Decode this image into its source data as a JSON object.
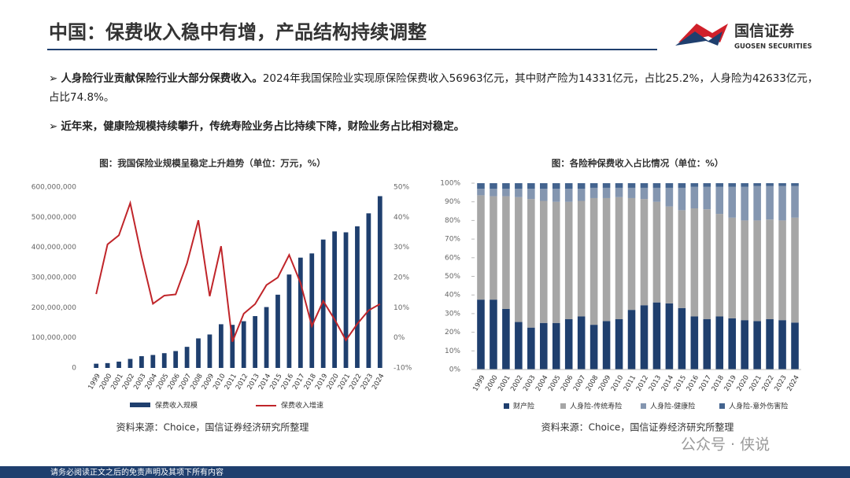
{
  "header": {
    "title": "中国：保费收入稳中有增，产品结构持续调整",
    "logo_name": "国信证券",
    "logo_sub": "GUOSEN SECURITIES"
  },
  "bullets": [
    {
      "lead": "人身险行业贡献保险行业大部分保费收入。",
      "text": "2024年我国保险业实现原保险保费收入56963亿元，其中财产险为14331亿元，占比25.2%，人身险为42633亿元，占比74.8%。"
    },
    {
      "lead": "近年来，健康险规模持续攀升，传统寿险业务占比持续下降，财险业务占比相对稳定。"
    }
  ],
  "footer": "请务必阅读正文之后的免责声明及其项下所有内容",
  "watermark": "公众号 · 侠说",
  "chart_data": [
    {
      "type": "bar_line",
      "title": "图：我国保险业规模呈稳定上升趋势（单位：万元，%）",
      "source": "资料来源：Choice，国信证券经济研究所整理",
      "categories": [
        "1999",
        "2000",
        "2001",
        "2002",
        "2003",
        "2004",
        "2005",
        "2006",
        "2007",
        "2008",
        "2009",
        "2010",
        "2011",
        "2012",
        "2013",
        "2014",
        "2015",
        "2016",
        "2017",
        "2018",
        "2019",
        "2020",
        "2021",
        "2022",
        "2023",
        "2024"
      ],
      "series": [
        {
          "name": "保费收入规模",
          "color": "#1f3f6e",
          "values": [
            14000000,
            16000000,
            21000000,
            30000000,
            39000000,
            43000000,
            49000000,
            56000000,
            70000000,
            98000000,
            111000000,
            145000000,
            143000000,
            155000000,
            172000000,
            202000000,
            243000000,
            310000000,
            366000000,
            380000000,
            426000000,
            453000000,
            450000000,
            470000000,
            513000000,
            570000000
          ]
        },
        {
          "name": "保费收入增速",
          "color": "#c0252a",
          "axis": "y2",
          "values": [
            14.5,
            31,
            34,
            44.7,
            27,
            11.3,
            14,
            14.4,
            24.7,
            39,
            13.8,
            30.4,
            -1.3,
            8,
            11.2,
            17.5,
            20,
            27.5,
            18.2,
            3.9,
            12.2,
            6.1,
            -0.8,
            4.6,
            9.1,
            11.2
          ]
        }
      ],
      "ylim": [
        0,
        600000000
      ],
      "yticks": [
        0,
        {
          "value": 100000000,
          "label": "100,000,000"
        },
        {
          "value": 200000000,
          "label": "200,000,000"
        },
        {
          "value": 300000000,
          "label": "300,000,000"
        },
        {
          "value": 400000000,
          "label": "400,000,000"
        },
        {
          "value": 500000000,
          "label": "500,000,000"
        },
        {
          "value": 600000000,
          "label": "600,000,000"
        }
      ],
      "y2lim": [
        -10,
        50
      ],
      "y2ticks": [
        {
          "value": -10,
          "label": "-10%"
        },
        {
          "value": 0,
          "label": "0%"
        },
        {
          "value": 10,
          "label": "10%"
        },
        {
          "value": 20,
          "label": "20%"
        },
        {
          "value": 30,
          "label": "30%"
        },
        {
          "value": 40,
          "label": "40%"
        },
        {
          "value": 50,
          "label": "50%"
        }
      ]
    },
    {
      "type": "stacked_bar",
      "title": "图：各险种保费收入占比情况（单位：%）",
      "source": "资料来源：Choice，国信证券经济研究所整理",
      "categories": [
        "1999",
        "2000",
        "2001",
        "2002",
        "2003",
        "2004",
        "2005",
        "2006",
        "2007",
        "2008",
        "2009",
        "2010",
        "2011",
        "2012",
        "2013",
        "2014",
        "2015",
        "2016",
        "2017",
        "2018",
        "2019",
        "2020",
        "2021",
        "2022",
        "2023",
        "2024"
      ],
      "series": [
        {
          "name": "财产险",
          "color": "#1f3f6e",
          "values": [
            37.5,
            37.5,
            32.5,
            25.5,
            22.5,
            25,
            25,
            27,
            28.5,
            24,
            26,
            27,
            32,
            34.5,
            36,
            35.5,
            33,
            28.5,
            27,
            28.5,
            27.5,
            26.5,
            26,
            27,
            26.5,
            25.2
          ]
        },
        {
          "name": "人身险-传统寿险",
          "color": "#a6a6a6",
          "values": [
            56,
            55.5,
            60.5,
            67,
            69,
            65.5,
            65,
            63,
            62,
            68,
            66,
            65.5,
            60,
            57,
            54,
            52,
            52.5,
            58,
            59,
            55,
            54,
            53.5,
            54,
            53.5,
            53.5,
            56.3
          ]
        },
        {
          "name": "人身险-健康险",
          "color": "#8496b0",
          "values": [
            3.5,
            4,
            4,
            4.5,
            5.5,
            6.5,
            7,
            7,
            6.5,
            5.5,
            5.5,
            5,
            5.5,
            6,
            7.5,
            10,
            12,
            11.5,
            12,
            14.5,
            16.5,
            18,
            18.5,
            18,
            18.5,
            17
          ]
        },
        {
          "name": "人身险-意外伤害险",
          "color": "#44648f",
          "values": [
            3,
            3,
            3,
            3,
            3,
            3,
            3,
            3,
            3,
            2.5,
            2.5,
            2.5,
            2.5,
            2.5,
            2.5,
            2.5,
            2.5,
            2,
            2,
            2,
            2,
            2,
            1.5,
            1.5,
            1.5,
            1.5
          ]
        }
      ],
      "ylim": [
        0,
        100
      ],
      "yticks": [
        {
          "value": 0,
          "label": "0%"
        },
        {
          "value": 10,
          "label": "10%"
        },
        {
          "value": 20,
          "label": "20%"
        },
        {
          "value": 30,
          "label": "30%"
        },
        {
          "value": 40,
          "label": "40%"
        },
        {
          "value": 50,
          "label": "50%"
        },
        {
          "value": 60,
          "label": "60%"
        },
        {
          "value": 70,
          "label": "70%"
        },
        {
          "value": 80,
          "label": "80%"
        },
        {
          "value": 90,
          "label": "90%"
        },
        {
          "value": 100,
          "label": "100%"
        }
      ]
    }
  ]
}
